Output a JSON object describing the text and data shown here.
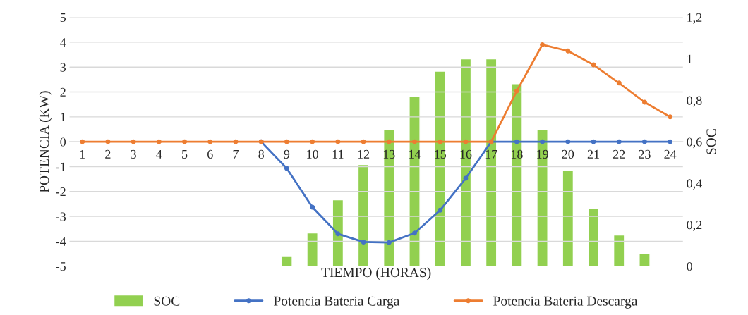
{
  "chart_data": {
    "type": "line",
    "xlabel": "TIEMPO (HORAS)",
    "ylabel": "POTENCIA (KW)",
    "y2label": "SOC",
    "categories": [
      "1",
      "2",
      "3",
      "4",
      "5",
      "6",
      "7",
      "8",
      "9",
      "10",
      "11",
      "12",
      "13",
      "14",
      "15",
      "16",
      "17",
      "18",
      "19",
      "20",
      "21",
      "22",
      "23",
      "24"
    ],
    "series": [
      {
        "name": "SOC",
        "type": "bar",
        "axis": "y2",
        "color": "#92d050",
        "values": [
          null,
          null,
          null,
          null,
          null,
          null,
          null,
          null,
          0.05,
          0.16,
          0.32,
          0.49,
          0.66,
          0.82,
          0.94,
          1.0,
          1.0,
          0.88,
          0.66,
          0.46,
          0.28,
          0.15,
          0.06,
          null
        ]
      },
      {
        "name": "Potencia Bateria Carga",
        "color": "#4472c4",
        "values": [
          null,
          null,
          null,
          null,
          null,
          null,
          null,
          0,
          -1.07,
          -2.63,
          -3.7,
          -4.03,
          -4.05,
          -3.67,
          -2.75,
          -1.47,
          0,
          0,
          0,
          0,
          0,
          0,
          0,
          0
        ]
      },
      {
        "name": "Potencia Bateria Descarga",
        "color": "#ed7d31",
        "values": [
          0,
          0,
          0,
          0,
          0,
          0,
          0,
          0,
          0,
          0,
          0,
          0,
          0,
          0,
          0,
          0,
          0,
          2.04,
          3.9,
          3.65,
          3.09,
          2.36,
          1.59,
          1.0
        ]
      }
    ],
    "ylim": [
      -5,
      5
    ],
    "yticks": [
      -5,
      -4,
      -3,
      -2,
      -1,
      0,
      1,
      2,
      3,
      4,
      5
    ],
    "y2lim": [
      0,
      1.2
    ],
    "y2ticks": [
      0,
      {
        "value": 0.2,
        "label": "0,2"
      },
      {
        "value": 0.4,
        "label": "0,4"
      },
      {
        "value": 0.6,
        "label": "0,6"
      },
      {
        "value": 0.8,
        "label": "0,8"
      },
      1,
      {
        "value": 1.2,
        "label": "1,2"
      }
    ],
    "grid": "y",
    "legend": "bottom",
    "marker": "circle",
    "line_style": "solid"
  }
}
